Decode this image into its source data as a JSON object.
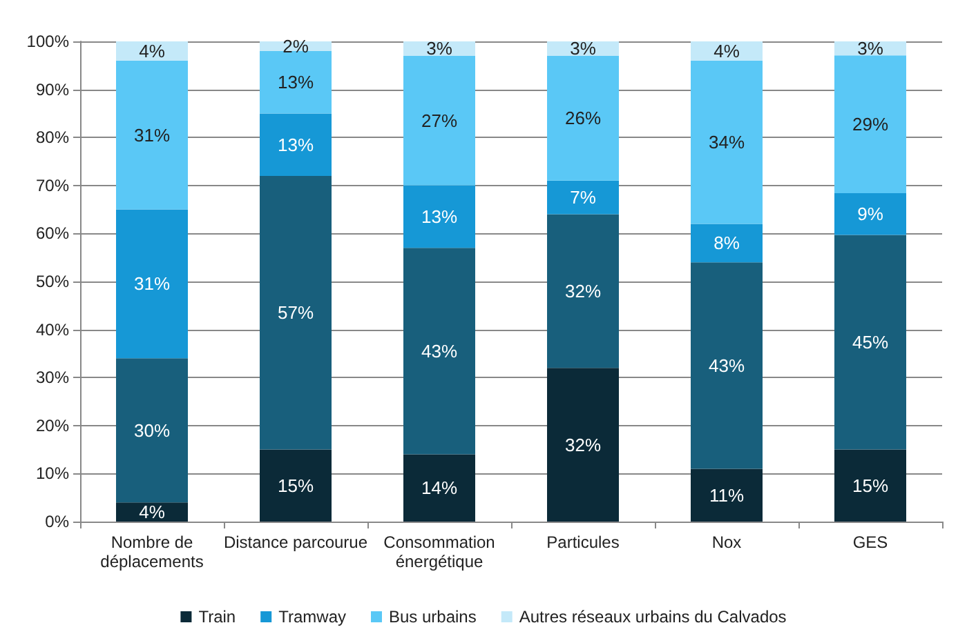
{
  "chart_data": {
    "type": "bar",
    "stacked": true,
    "categories": [
      "Nombre de\ndéplacements",
      "Distance parcourue",
      "Consommation\nénergétique",
      "Particules",
      "Nox",
      "GES"
    ],
    "series": [
      {
        "name": "Train",
        "color": "#0b2a38",
        "values": [
          4,
          15,
          14,
          32,
          11,
          15
        ],
        "value_labels": [
          "4%",
          "15%",
          "14%",
          "32%",
          "11%",
          "15%"
        ]
      },
      {
        "color": "#185f7c",
        "values": [
          30,
          57,
          43,
          32,
          43,
          44.7
        ],
        "value_labels": [
          "30%",
          "57%",
          "43%",
          "32%",
          "43%",
          "45%"
        ]
      },
      {
        "name": "Tramway",
        "color": "#1698d6",
        "values": [
          31,
          13,
          13,
          7,
          8,
          8.7
        ],
        "value_labels": [
          "31%",
          "13%",
          "13%",
          "7%",
          "8%",
          "9%"
        ]
      },
      {
        "name": "Bus urbains",
        "color": "#5ac8f6",
        "values": [
          31,
          13,
          27,
          26,
          34,
          28.7
        ],
        "value_labels": [
          "31%",
          "13%",
          "27%",
          "26%",
          "34%",
          "29%"
        ]
      },
      {
        "name": "Autres réseaux urbains du Calvados",
        "color": "#c4e9f9",
        "values": [
          4,
          2,
          3,
          3,
          4,
          2.9
        ],
        "value_labels": [
          "4%",
          "2%",
          "3%",
          "3%",
          "4%",
          "3%"
        ]
      }
    ],
    "ylim": [
      0,
      100
    ],
    "yticks": [
      {
        "value": 0,
        "label": "0%"
      },
      {
        "value": 10,
        "label": "10%"
      },
      {
        "value": 20,
        "label": "20%"
      },
      {
        "value": 30,
        "label": "30%"
      },
      {
        "value": 40,
        "label": "40%"
      },
      {
        "value": 50,
        "label": "50%"
      },
      {
        "value": 60,
        "label": "60%"
      },
      {
        "value": 70,
        "label": "70%"
      },
      {
        "value": 80,
        "label": "80%"
      },
      {
        "value": 90,
        "label": "90%"
      },
      {
        "value": 100,
        "label": "100%"
      }
    ],
    "grid": "y",
    "legend": "bottom"
  }
}
